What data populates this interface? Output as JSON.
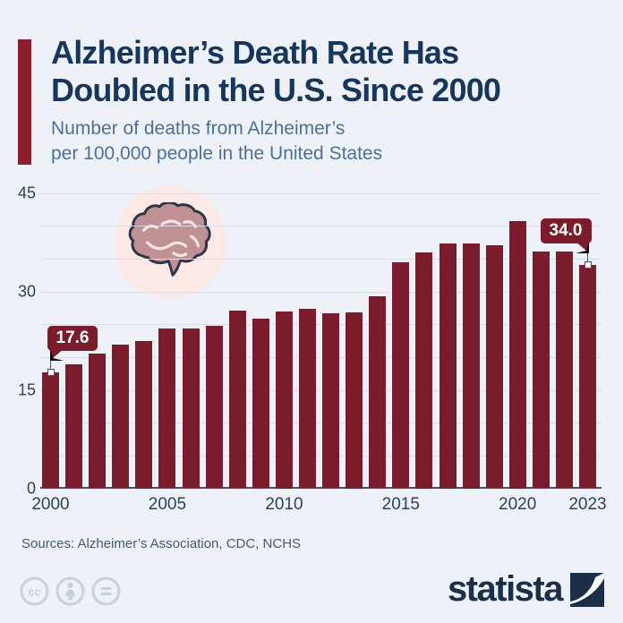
{
  "header": {
    "title_line1": "Alzheimer’s Death Rate Has",
    "title_line2": "Doubled in the U.S. Since 2000",
    "subtitle_line1": "Number of deaths from Alzheimer’s",
    "subtitle_line2": "per 100,000 people in the United States"
  },
  "footer": {
    "sources": "Sources: Alzheimer’s Association, CDC, NCHS",
    "brand": "statista",
    "license_icons": [
      "cc-icon",
      "attribution-icon",
      "equal-sign-icon"
    ]
  },
  "colors": {
    "background": "#eef2f8",
    "bar": "#7a1c2c",
    "accent_bar": "#8c1d2c",
    "title": "#16365c",
    "subtitle": "#4d7092",
    "axis_text": "#2b4257",
    "gridline": "#d8dfe8",
    "baseline": "#42546a",
    "callout_bg": "#7a1c2c",
    "callout_text": "#ffffff",
    "brain_circle": "#fce8e5",
    "brain_fill": "#bf9094",
    "brain_outline": "#2c3547",
    "license_icon": "#c7d1dc",
    "logo": "#1b3048"
  },
  "chart_data": {
    "type": "bar",
    "title": "Alzheimer’s Death Rate Has Doubled in the U.S. Since 2000",
    "xlabel": "",
    "ylabel": "",
    "categories": [
      2000,
      2001,
      2002,
      2003,
      2004,
      2005,
      2006,
      2007,
      2008,
      2009,
      2010,
      2011,
      2012,
      2013,
      2014,
      2015,
      2016,
      2017,
      2018,
      2019,
      2020,
      2021,
      2022,
      2023
    ],
    "values": [
      17.6,
      18.9,
      20.5,
      21.9,
      22.5,
      24.3,
      24.3,
      24.8,
      27.1,
      25.9,
      27.0,
      27.3,
      26.6,
      26.8,
      29.3,
      34.4,
      36.0,
      37.3,
      37.3,
      37.0,
      40.7,
      36.1,
      36.1,
      34.0
    ],
    "ylim": [
      0,
      45
    ],
    "grid_step": 5,
    "grid": true,
    "legend": false,
    "ytick_labels": [
      "0",
      "15",
      "30",
      "45"
    ],
    "xtick_labels": [
      "2000",
      "2005",
      "2010",
      "2015",
      "2020",
      "2023"
    ],
    "bar_color": "#7a1c2c",
    "callouts": [
      {
        "index": 0,
        "label": "17.6",
        "side": "left"
      },
      {
        "index": 23,
        "label": "34.0",
        "side": "right"
      }
    ]
  }
}
